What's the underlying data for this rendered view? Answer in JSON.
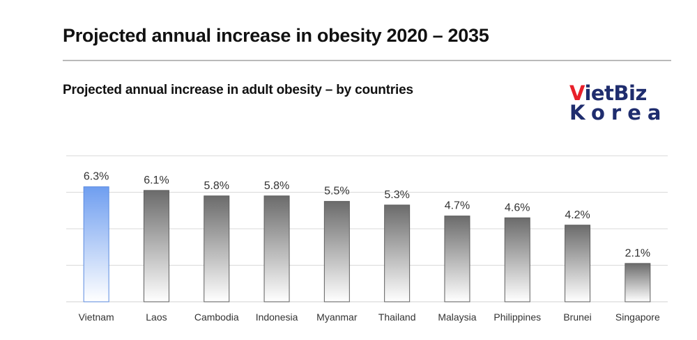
{
  "header": {
    "title": "Projected annual increase in obesity 2020 – 2035",
    "subtitle": "Projected annual increase in adult obesity – by countries"
  },
  "logo": {
    "line1_a": "V",
    "line1_b": "ietBiz",
    "line2": "Korea",
    "red": "#e8202a",
    "navy": "#1f2d6e"
  },
  "chart_data": {
    "type": "bar",
    "title": "Projected annual increase in adult obesity – by countries",
    "categories": [
      "Vietnam",
      "Laos",
      "Cambodia",
      "Indonesia",
      "Myanmar",
      "Thailand",
      "Malaysia",
      "Philippines",
      "Brunei",
      "Singapore"
    ],
    "values": [
      6.3,
      6.1,
      5.8,
      5.8,
      5.5,
      5.3,
      4.7,
      4.6,
      4.2,
      2.1
    ],
    "labels": [
      "6.3%",
      "6.1%",
      "5.8%",
      "5.8%",
      "5.5%",
      "5.3%",
      "4.7%",
      "4.6%",
      "4.2%",
      "2.1%"
    ],
    "ylim": [
      0,
      8
    ],
    "grid": true,
    "highlight": "Vietnam",
    "colors": {
      "highlight": "#6f9ef0",
      "default": "#6b6b6b",
      "grid": "#d9d9d9"
    }
  }
}
